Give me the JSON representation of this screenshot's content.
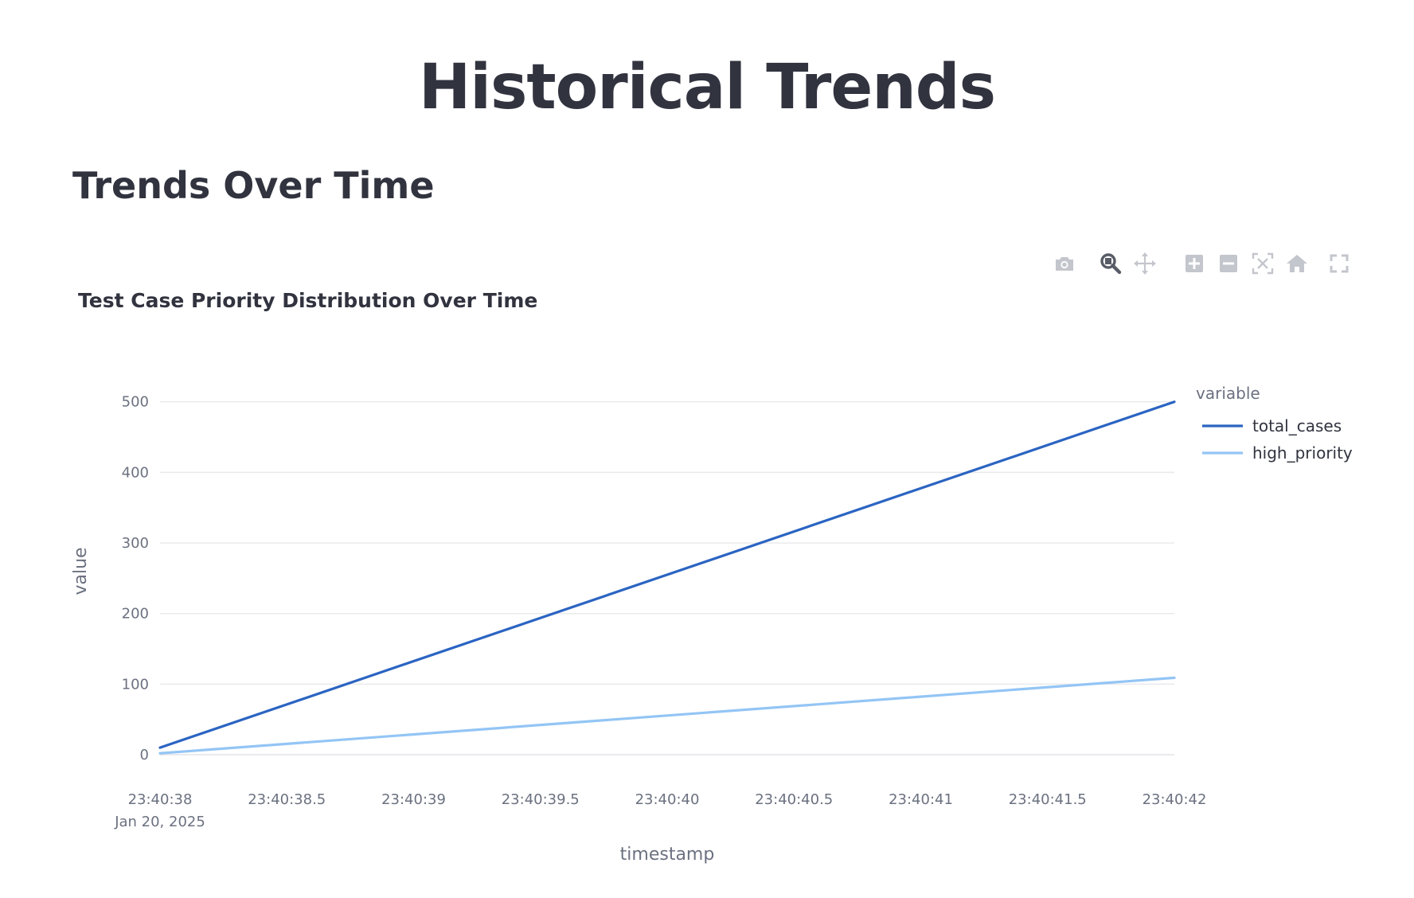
{
  "page": {
    "title": "Historical Trends",
    "section_title": "Trends Over Time"
  },
  "modebar": {
    "icons": [
      "camera-icon",
      "zoom-icon",
      "pan-icon",
      "zoom-in-icon",
      "zoom-out-icon",
      "autoscale-icon",
      "reset-axes-icon",
      "fullscreen-icon"
    ],
    "active_icon": "zoom-icon",
    "icon_color": "#c3c6cc",
    "active_color": "#585c66"
  },
  "chart_data": {
    "type": "line",
    "title": "Test Case Priority Distribution Over Time",
    "xlabel": "timestamp",
    "ylabel": "value",
    "x": [
      "23:40:38",
      "23:40:42"
    ],
    "x_seconds": [
      38,
      42
    ],
    "xlim": [
      38,
      42
    ],
    "x_ticks": [
      {
        "value": 38,
        "label": "23:40:38"
      },
      {
        "value": 38.5,
        "label": "23:40:38.5"
      },
      {
        "value": 39,
        "label": "23:40:39"
      },
      {
        "value": 39.5,
        "label": "23:40:39.5"
      },
      {
        "value": 40,
        "label": "23:40:40"
      },
      {
        "value": 40.5,
        "label": "23:40:40.5"
      },
      {
        "value": 41,
        "label": "23:40:41"
      },
      {
        "value": 41.5,
        "label": "23:40:41.5"
      },
      {
        "value": 42,
        "label": "23:40:42"
      }
    ],
    "x_date_label": "Jan 20, 2025",
    "ylim": [
      0,
      520
    ],
    "y_ticks": [
      0,
      100,
      200,
      300,
      400,
      500
    ],
    "grid": true,
    "legend": {
      "title": "variable",
      "placement": "top-right"
    },
    "series": [
      {
        "name": "total_cases",
        "color": "#2b64c2",
        "values": [
          10,
          500
        ]
      },
      {
        "name": "high_priority",
        "color": "#93c5f5",
        "values": [
          2,
          109
        ]
      }
    ]
  }
}
